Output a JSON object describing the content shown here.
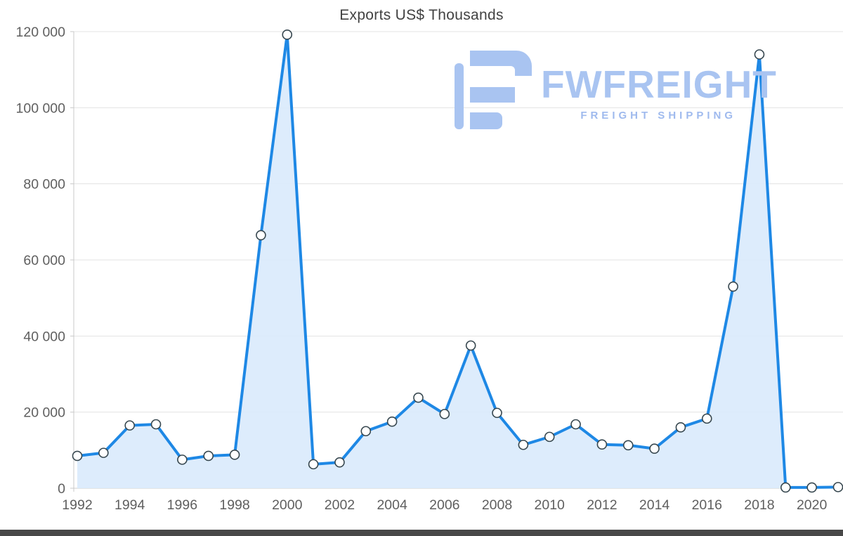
{
  "chart_data": {
    "type": "area",
    "title": "Exports US$ Thousands",
    "x": [
      1992,
      1993,
      1994,
      1995,
      1996,
      1997,
      1998,
      1999,
      2000,
      2001,
      2002,
      2003,
      2004,
      2005,
      2006,
      2007,
      2008,
      2009,
      2010,
      2011,
      2012,
      2013,
      2014,
      2015,
      2016,
      2017,
      2018,
      2019,
      2020,
      2021
    ],
    "values": [
      8500,
      9300,
      16500,
      16800,
      7500,
      8500,
      8800,
      66500,
      119200,
      6300,
      6800,
      15000,
      17500,
      23800,
      19500,
      37500,
      19800,
      11400,
      13500,
      16800,
      11500,
      11300,
      10400,
      16000,
      18300,
      53000,
      114000,
      200,
      200,
      300
    ],
    "ylim": [
      0,
      120000
    ],
    "y_ticks": [
      0,
      20000,
      40000,
      60000,
      80000,
      100000,
      120000
    ],
    "y_tick_labels": [
      "0",
      "20 000",
      "40 000",
      "60 000",
      "80 000",
      "100 000",
      "120 000"
    ],
    "x_tick_labels": [
      "1992",
      "1994",
      "1996",
      "1998",
      "2000",
      "2002",
      "2004",
      "2006",
      "2008",
      "2010",
      "2012",
      "2014",
      "2016",
      "2018",
      "2020"
    ],
    "grid": true,
    "legend": "none",
    "line_color": "#1e88e5",
    "fill_color": "#d9eafc",
    "marker_fill": "#ffffff",
    "marker_stroke": "#37474f",
    "grid_color": "#e3e3e3",
    "axis_color": "#c9c9c9",
    "tick_label_color": "#5f5f5f"
  },
  "watermark": {
    "brand": "FWFREIGHT",
    "tagline": "FREIGHT SHIPPING",
    "color": "#a9c4f1"
  }
}
